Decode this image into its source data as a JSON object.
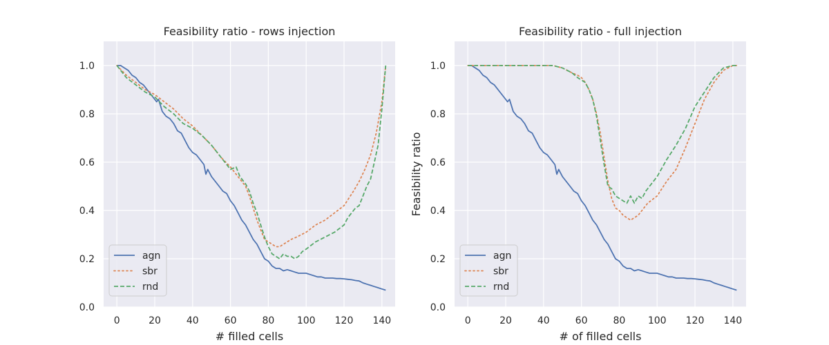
{
  "colors": {
    "plot_bg": "#eaeaf2",
    "grid": "#ffffff",
    "agn": "#4c72b0",
    "sbr": "#dd8452",
    "rnd": "#55a868",
    "legend_bg": "#eaeaf2",
    "legend_edge": "#cccccc"
  },
  "chart_data": [
    {
      "type": "line",
      "title": "Feasibility ratio - rows injection",
      "xlabel": "# filled cells",
      "ylabel": "",
      "xlim": [
        -7,
        147
      ],
      "ylim": [
        0,
        1.1
      ],
      "xticks": [
        0,
        20,
        40,
        60,
        80,
        100,
        120,
        140
      ],
      "yticks": [
        0.0,
        0.2,
        0.4,
        0.6,
        0.8,
        1.0
      ],
      "xtick_labels": [
        "0",
        "20",
        "40",
        "60",
        "80",
        "100",
        "120",
        "140"
      ],
      "ytick_labels": [
        "0.0",
        "0.2",
        "0.4",
        "0.6",
        "0.8",
        "1.0"
      ],
      "grid": true,
      "legend": "lower-left",
      "series": [
        {
          "name": "agn",
          "style": "solid",
          "x": [
            0,
            2,
            4,
            6,
            8,
            10,
            12,
            14,
            16,
            18,
            20,
            21,
            22,
            24,
            26,
            28,
            30,
            32,
            34,
            36,
            38,
            40,
            42,
            44,
            46,
            47,
            48,
            50,
            52,
            54,
            56,
            58,
            60,
            62,
            64,
            66,
            68,
            70,
            72,
            74,
            76,
            78,
            80,
            82,
            84,
            86,
            88,
            90,
            92,
            94,
            96,
            98,
            100,
            102,
            104,
            106,
            108,
            110,
            112,
            114,
            116,
            118,
            120,
            122,
            124,
            126,
            128,
            130,
            132,
            134,
            136,
            138,
            140,
            142
          ],
          "y": [
            1.0,
            1.0,
            0.99,
            0.98,
            0.96,
            0.95,
            0.93,
            0.92,
            0.9,
            0.88,
            0.86,
            0.85,
            0.86,
            0.81,
            0.79,
            0.78,
            0.76,
            0.73,
            0.72,
            0.69,
            0.66,
            0.64,
            0.63,
            0.61,
            0.59,
            0.55,
            0.57,
            0.54,
            0.52,
            0.5,
            0.48,
            0.47,
            0.44,
            0.42,
            0.39,
            0.36,
            0.34,
            0.31,
            0.28,
            0.26,
            0.23,
            0.2,
            0.19,
            0.17,
            0.16,
            0.16,
            0.15,
            0.155,
            0.15,
            0.145,
            0.14,
            0.14,
            0.14,
            0.135,
            0.13,
            0.125,
            0.125,
            0.12,
            0.12,
            0.12,
            0.118,
            0.118,
            0.117,
            0.115,
            0.113,
            0.11,
            0.108,
            0.1,
            0.095,
            0.09,
            0.085,
            0.08,
            0.075,
            0.07
          ]
        },
        {
          "name": "sbr",
          "style": "dotted",
          "x": [
            0,
            5,
            10,
            15,
            20,
            25,
            30,
            35,
            40,
            45,
            50,
            55,
            60,
            65,
            68,
            70,
            72,
            74,
            76,
            78,
            80,
            82,
            84,
            86,
            88,
            90,
            92,
            95,
            100,
            105,
            110,
            115,
            120,
            125,
            128,
            131,
            134,
            137,
            140,
            142
          ],
          "y": [
            1.0,
            0.96,
            0.93,
            0.9,
            0.88,
            0.85,
            0.82,
            0.78,
            0.75,
            0.71,
            0.67,
            0.62,
            0.58,
            0.53,
            0.5,
            0.46,
            0.41,
            0.36,
            0.32,
            0.28,
            0.27,
            0.26,
            0.25,
            0.25,
            0.26,
            0.27,
            0.28,
            0.29,
            0.31,
            0.34,
            0.36,
            0.39,
            0.42,
            0.48,
            0.52,
            0.57,
            0.63,
            0.72,
            0.85,
            1.0
          ]
        },
        {
          "name": "rnd",
          "style": "dashed",
          "x": [
            0,
            5,
            10,
            15,
            20,
            25,
            30,
            35,
            40,
            45,
            50,
            55,
            60,
            63,
            65,
            68,
            70,
            72,
            74,
            76,
            78,
            80,
            82,
            84,
            86,
            88,
            90,
            92,
            94,
            96,
            98,
            100,
            105,
            110,
            115,
            120,
            122,
            124,
            126,
            128,
            130,
            132,
            134,
            136,
            138,
            140,
            142
          ],
          "y": [
            1.0,
            0.95,
            0.92,
            0.89,
            0.87,
            0.83,
            0.8,
            0.76,
            0.74,
            0.71,
            0.67,
            0.62,
            0.57,
            0.58,
            0.54,
            0.51,
            0.48,
            0.43,
            0.39,
            0.34,
            0.29,
            0.25,
            0.22,
            0.21,
            0.2,
            0.22,
            0.21,
            0.21,
            0.2,
            0.21,
            0.23,
            0.24,
            0.27,
            0.29,
            0.31,
            0.34,
            0.37,
            0.39,
            0.41,
            0.42,
            0.46,
            0.5,
            0.53,
            0.6,
            0.67,
            0.82,
            1.0
          ]
        }
      ]
    },
    {
      "type": "line",
      "title": "Feasibility ratio - full injection",
      "xlabel": "# of filled cells",
      "ylabel": "Feasibility ratio",
      "xlim": [
        -7,
        147
      ],
      "ylim": [
        0,
        1.1
      ],
      "xticks": [
        0,
        20,
        40,
        60,
        80,
        100,
        120,
        140
      ],
      "yticks": [
        0.0,
        0.2,
        0.4,
        0.6,
        0.8,
        1.0
      ],
      "xtick_labels": [
        "0",
        "20",
        "40",
        "60",
        "80",
        "100",
        "120",
        "140"
      ],
      "ytick_labels": [
        "0.0",
        "0.2",
        "0.4",
        "0.6",
        "0.8",
        "1.0"
      ],
      "grid": true,
      "legend": "lower-left",
      "series": [
        {
          "name": "agn",
          "style": "solid",
          "x": [
            0,
            2,
            4,
            6,
            8,
            10,
            12,
            14,
            16,
            18,
            20,
            21,
            22,
            24,
            26,
            28,
            30,
            32,
            34,
            36,
            38,
            40,
            42,
            44,
            46,
            47,
            48,
            50,
            52,
            54,
            56,
            58,
            60,
            62,
            64,
            66,
            68,
            70,
            72,
            74,
            76,
            78,
            80,
            82,
            84,
            86,
            88,
            90,
            92,
            94,
            96,
            98,
            100,
            102,
            104,
            106,
            108,
            110,
            112,
            114,
            116,
            118,
            120,
            122,
            124,
            126,
            128,
            130,
            132,
            134,
            136,
            138,
            140,
            142
          ],
          "y": [
            1.0,
            1.0,
            0.99,
            0.98,
            0.96,
            0.95,
            0.93,
            0.92,
            0.9,
            0.88,
            0.86,
            0.85,
            0.86,
            0.81,
            0.79,
            0.78,
            0.76,
            0.73,
            0.72,
            0.69,
            0.66,
            0.64,
            0.63,
            0.61,
            0.59,
            0.55,
            0.57,
            0.54,
            0.52,
            0.5,
            0.48,
            0.47,
            0.44,
            0.42,
            0.39,
            0.36,
            0.34,
            0.31,
            0.28,
            0.26,
            0.23,
            0.2,
            0.19,
            0.17,
            0.16,
            0.16,
            0.15,
            0.155,
            0.15,
            0.145,
            0.14,
            0.14,
            0.14,
            0.135,
            0.13,
            0.125,
            0.125,
            0.12,
            0.12,
            0.12,
            0.118,
            0.118,
            0.117,
            0.115,
            0.113,
            0.11,
            0.108,
            0.1,
            0.095,
            0.09,
            0.085,
            0.08,
            0.075,
            0.07
          ]
        },
        {
          "name": "sbr",
          "style": "dotted",
          "x": [
            0,
            10,
            20,
            30,
            40,
            45,
            50,
            55,
            58,
            60,
            62,
            64,
            66,
            68,
            70,
            72,
            74,
            76,
            78,
            80,
            82,
            84,
            86,
            88,
            90,
            92,
            95,
            100,
            105,
            110,
            115,
            120,
            125,
            130,
            135,
            140,
            142
          ],
          "y": [
            1.0,
            1.0,
            1.0,
            1.0,
            1.0,
            1.0,
            0.99,
            0.97,
            0.96,
            0.95,
            0.93,
            0.9,
            0.86,
            0.8,
            0.72,
            0.62,
            0.52,
            0.45,
            0.41,
            0.4,
            0.38,
            0.37,
            0.36,
            0.37,
            0.38,
            0.4,
            0.43,
            0.46,
            0.52,
            0.57,
            0.66,
            0.76,
            0.86,
            0.93,
            0.98,
            1.0,
            1.0
          ]
        },
        {
          "name": "rnd",
          "style": "dashed",
          "x": [
            0,
            10,
            20,
            30,
            40,
            45,
            50,
            55,
            58,
            60,
            62,
            64,
            66,
            68,
            70,
            72,
            74,
            76,
            78,
            80,
            82,
            84,
            86,
            88,
            90,
            92,
            94,
            96,
            100,
            105,
            110,
            115,
            120,
            125,
            130,
            135,
            140,
            142
          ],
          "y": [
            1.0,
            1.0,
            1.0,
            1.0,
            1.0,
            1.0,
            0.99,
            0.97,
            0.95,
            0.94,
            0.93,
            0.9,
            0.86,
            0.79,
            0.69,
            0.59,
            0.5,
            0.49,
            0.46,
            0.45,
            0.44,
            0.43,
            0.46,
            0.43,
            0.46,
            0.45,
            0.48,
            0.5,
            0.54,
            0.61,
            0.67,
            0.74,
            0.83,
            0.89,
            0.95,
            0.99,
            1.0,
            1.0
          ]
        }
      ]
    }
  ]
}
